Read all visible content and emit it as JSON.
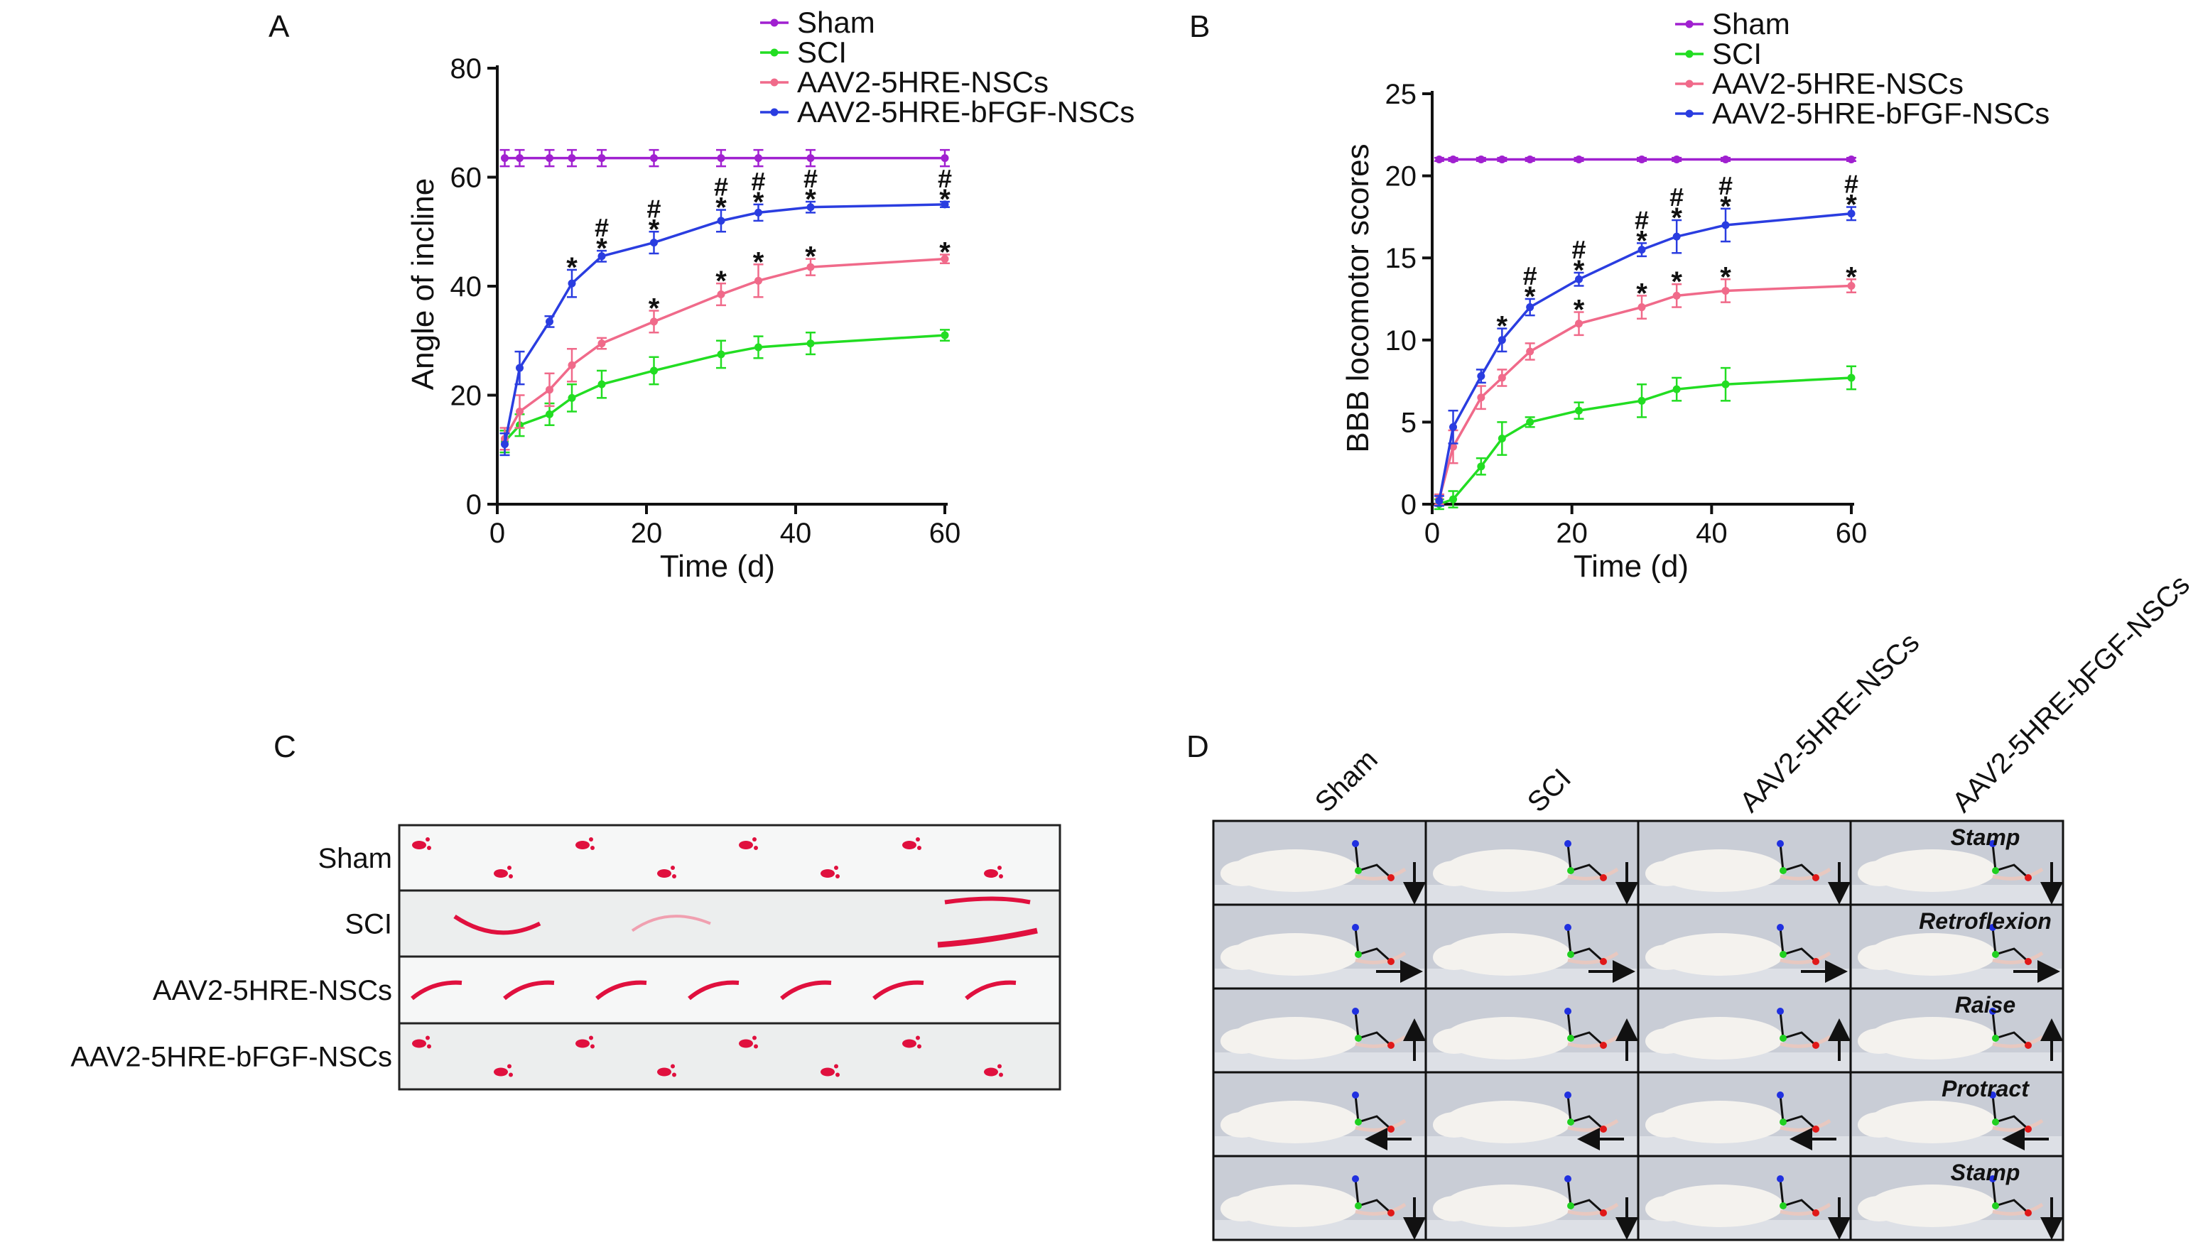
{
  "panels": {
    "a": "A",
    "b": "B",
    "c": "C",
    "d": "D"
  },
  "legend": [
    {
      "name": "Sham",
      "color": "#a020d0"
    },
    {
      "name": "SCI",
      "color": "#22dd22"
    },
    {
      "name": "AAV2-5HRE-NSCs",
      "color": "#f06a8a"
    },
    {
      "name": "AAV2-5HRE-bFGF-NSCs",
      "color": "#2a3de0"
    }
  ],
  "chart_data": [
    {
      "type": "line",
      "panel": "A",
      "title": "",
      "xlabel": "Time (d)",
      "ylabel": "Angle of incline",
      "xlim": [
        0,
        60
      ],
      "ylim": [
        0,
        80
      ],
      "xticks": [
        0,
        20,
        40,
        60
      ],
      "yticks": [
        0,
        20,
        40,
        60,
        80
      ],
      "x": [
        1,
        3,
        7,
        10,
        14,
        21,
        30,
        35,
        42,
        60
      ],
      "series": [
        {
          "name": "Sham",
          "color": "#a020d0",
          "values": [
            63.5,
            63.5,
            63.5,
            63.5,
            63.5,
            63.5,
            63.5,
            63.5,
            63.5,
            63.5
          ],
          "err": [
            1.5,
            1.5,
            1.5,
            1.5,
            1.5,
            1.5,
            1.5,
            1.5,
            1.5,
            1.5
          ]
        },
        {
          "name": "SCI",
          "color": "#22dd22",
          "values": [
            11.5,
            14.5,
            16.5,
            19.5,
            22,
            24.5,
            27.5,
            28.8,
            29.5,
            31
          ],
          "err": [
            2,
            2,
            2,
            2.5,
            2.5,
            2.5,
            2.5,
            2,
            2,
            1
          ]
        },
        {
          "name": "AAV2-5HRE-NSCs",
          "color": "#f06a8a",
          "values": [
            12,
            17,
            21,
            25.5,
            29.5,
            33.5,
            38.5,
            41,
            43.5,
            45
          ],
          "err": [
            2,
            3,
            3,
            3,
            1,
            2,
            2,
            3,
            1.5,
            0.8
          ]
        },
        {
          "name": "AAV2-5HRE-bFGF-NSCs",
          "color": "#2a3de0",
          "values": [
            11,
            25,
            33.5,
            40.5,
            45.5,
            48,
            52,
            53.5,
            54.5,
            55
          ],
          "err": [
            2,
            3,
            1,
            2.5,
            1,
            2,
            2,
            1.5,
            1,
            0.5
          ]
        }
      ],
      "star_marks": [
        10,
        14,
        21,
        30,
        35,
        42,
        60
      ],
      "hash_marks": [
        14,
        21,
        30,
        35,
        42,
        60
      ],
      "upper_marks": [
        10,
        14,
        21,
        30,
        35,
        42,
        60
      ],
      "lower_marks": [
        21,
        30,
        35,
        42,
        60
      ]
    },
    {
      "type": "line",
      "panel": "B",
      "title": "",
      "xlabel": "Time (d)",
      "ylabel": "BBB locomotor scores",
      "xlim": [
        0,
        60
      ],
      "ylim": [
        0,
        25
      ],
      "xticks": [
        0,
        20,
        40,
        60
      ],
      "yticks": [
        0,
        5,
        10,
        15,
        20,
        25
      ],
      "x": [
        1,
        3,
        7,
        10,
        14,
        21,
        30,
        35,
        42,
        60
      ],
      "series": [
        {
          "name": "Sham",
          "color": "#a020d0",
          "values": [
            21,
            21,
            21,
            21,
            21,
            21,
            21,
            21,
            21,
            21
          ],
          "err": [
            0.1,
            0.1,
            0.1,
            0.1,
            0.1,
            0.1,
            0.1,
            0.1,
            0.1,
            0.1
          ]
        },
        {
          "name": "SCI",
          "color": "#22dd22",
          "values": [
            0,
            0.3,
            2.3,
            4,
            5,
            5.7,
            6.3,
            7,
            7.3,
            7.7
          ],
          "err": [
            0.3,
            0.5,
            0.5,
            1,
            0.3,
            0.5,
            1,
            0.7,
            1,
            0.7
          ]
        },
        {
          "name": "AAV2-5HRE-NSCs",
          "color": "#f06a8a",
          "values": [
            0.3,
            3.5,
            6.5,
            7.7,
            9.3,
            11,
            12,
            12.7,
            13,
            13.3
          ],
          "err": [
            0.3,
            1,
            0.7,
            0.5,
            0.5,
            0.7,
            0.7,
            0.7,
            0.7,
            0.4
          ]
        },
        {
          "name": "AAV2-5HRE-bFGF-NSCs",
          "color": "#2a3de0",
          "values": [
            0.2,
            4.7,
            7.8,
            10,
            12,
            13.7,
            15.5,
            16.3,
            17,
            17.7
          ],
          "err": [
            0.3,
            1,
            0.4,
            0.7,
            0.5,
            0.4,
            0.4,
            1,
            1,
            0.4
          ]
        }
      ],
      "star_marks": [
        10,
        14,
        21,
        30,
        35,
        42,
        60
      ],
      "hash_marks": [
        14,
        21,
        30,
        35,
        42,
        60
      ],
      "upper_marks": [
        10,
        14,
        21,
        30,
        35,
        42,
        60
      ],
      "lower_marks": [
        21,
        30,
        35,
        42,
        60
      ]
    }
  ],
  "footprints": {
    "rows": [
      "Sham",
      "SCI",
      "AAV2-5HRE-NSCs",
      "AAV2-5HRE-bFGF-NSCs"
    ]
  },
  "gait": {
    "columns": [
      "Sham",
      "SCI",
      "AAV2-5HRE-NSCs",
      "AAV2-5HRE-bFGF-NSCs"
    ],
    "phases": [
      "Stamp",
      "Retroflexion",
      "Raise",
      "Protract",
      "Stamp"
    ],
    "arrows": [
      "down",
      "right",
      "up",
      "left",
      "down"
    ]
  },
  "marks": {
    "star": "*",
    "hash": "#"
  }
}
